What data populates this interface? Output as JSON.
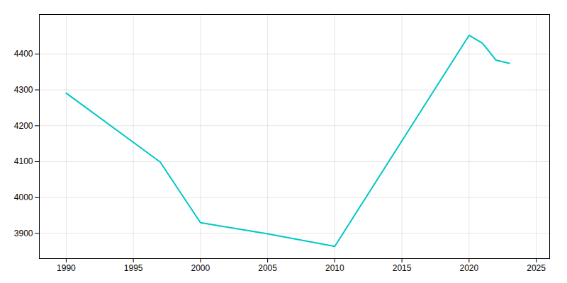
{
  "chart_data": {
    "type": "line",
    "x": [
      1990,
      1997,
      2000,
      2005,
      2010,
      2020,
      2021,
      2022,
      2023
    ],
    "values": [
      4291,
      4099,
      3930,
      3899,
      3864,
      4452,
      4430,
      4383,
      4374
    ],
    "color": "#00C8C8",
    "xlim": [
      1988,
      2026
    ],
    "ylim": [
      3830,
      4510
    ],
    "xticks": [
      1990,
      1995,
      2000,
      2005,
      2010,
      2015,
      2020,
      2025
    ],
    "yticks": [
      3900,
      4000,
      4100,
      4200,
      4300,
      4400
    ],
    "grid": true
  }
}
